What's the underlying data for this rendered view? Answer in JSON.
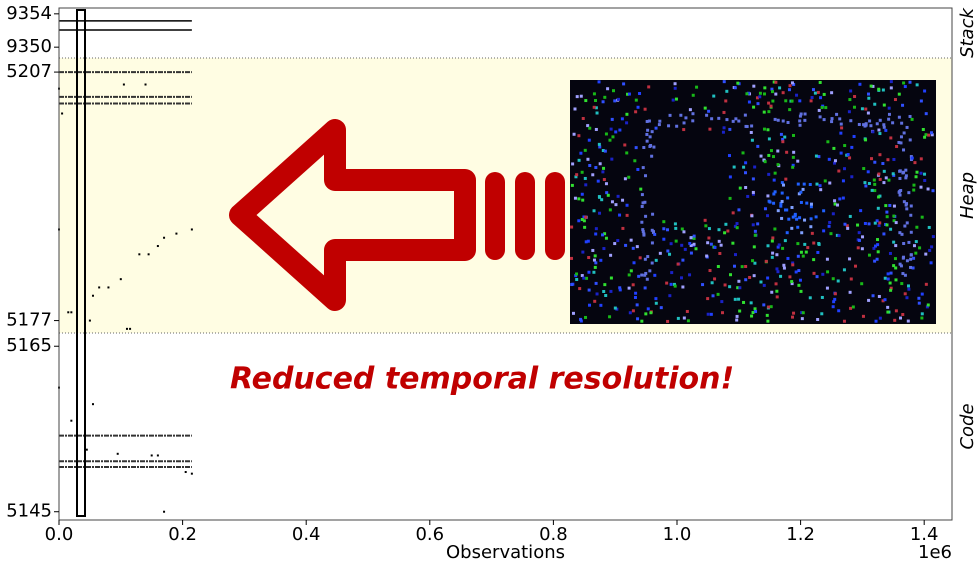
{
  "chart_data": [
    {
      "type": "scatter",
      "label": "Stack",
      "xlim": [
        0,
        1445000
      ],
      "ylim": [
        9348.7,
        9354.7
      ],
      "yticks": [
        9350,
        9354
      ],
      "series": [
        {
          "style": "line",
          "color": "#000000",
          "x": [
            0,
            215000
          ],
          "y": [
            9353.15,
            9353.15
          ]
        },
        {
          "style": "line",
          "color": "#000000",
          "x": [
            0,
            215000
          ],
          "y": [
            9352.06,
            9352.06
          ]
        }
      ]
    },
    {
      "type": "scatter",
      "label": "Heap",
      "background": "#fffde3",
      "xlim": [
        0,
        1445000
      ],
      "ylim": [
        5175.5,
        5208.7
      ],
      "yticks": [
        5177,
        5207
      ],
      "series": [
        {
          "style": "dashed",
          "color": "#333333",
          "x": [
            0,
            215000
          ],
          "y": [
            5207,
            5207
          ]
        },
        {
          "style": "dashed",
          "color": "#333333",
          "x": [
            0,
            215000
          ],
          "y": [
            5204,
            5204
          ]
        },
        {
          "style": "dashed",
          "color": "#333333",
          "x": [
            0,
            215000
          ],
          "y": [
            5203.2,
            5203.2
          ]
        },
        {
          "style": "points",
          "color": "#000000",
          "x": [
            0,
            0,
            5000,
            15000,
            20000,
            50000,
            55000,
            65000,
            80000,
            100000,
            110000,
            115000,
            130000,
            145000,
            160000,
            170000,
            190000,
            215000,
            105000,
            140000
          ],
          "y": [
            5188,
            5205,
            5202,
            5178,
            5178,
            5177,
            5180,
            5181,
            5181,
            5182,
            5176,
            5176,
            5185,
            5185,
            5186,
            5187,
            5187.5,
            5188,
            5205.5,
            5205.5
          ]
        }
      ]
    },
    {
      "type": "scatter",
      "label": "Code",
      "xlim": [
        0,
        1445000
      ],
      "ylim": [
        5144,
        5166.6
      ],
      "yticks": [
        5145,
        5165
      ],
      "xticks": [
        {
          "value": 0,
          "label": "0.0"
        },
        {
          "value": 200000,
          "label": "0.2"
        },
        {
          "value": 400000,
          "label": "0.4"
        },
        {
          "value": 600000,
          "label": "0.6"
        },
        {
          "value": 800000,
          "label": "0.8"
        },
        {
          "value": 1000000,
          "label": "1.0"
        },
        {
          "value": 1200000,
          "label": "1.2"
        },
        {
          "value": 1400000,
          "label": "1.4"
        }
      ],
      "xlabel": "Observations",
      "x_offset_label": "1e6",
      "series": [
        {
          "style": "dashed",
          "color": "#333333",
          "x": [
            0,
            215000
          ],
          "y": [
            5154.2,
            5154.2
          ]
        },
        {
          "style": "dashed",
          "color": "#333333",
          "x": [
            0,
            215000
          ],
          "y": [
            5151.1,
            5151.1
          ]
        },
        {
          "style": "dashed",
          "color": "#333333",
          "x": [
            0,
            215000
          ],
          "y": [
            5150.4,
            5150.4
          ]
        },
        {
          "style": "points",
          "color": "#000000",
          "x": [
            0,
            20000,
            55000,
            170000,
            45000,
            95000,
            150000,
            160000,
            205000,
            215000
          ],
          "y": [
            5160,
            5156,
            5158,
            5145,
            5152.5,
            5152,
            5151.8,
            5151.8,
            5149.8,
            5149.6
          ]
        }
      ]
    }
  ],
  "annotation": "Reduced temporal resolution!"
}
